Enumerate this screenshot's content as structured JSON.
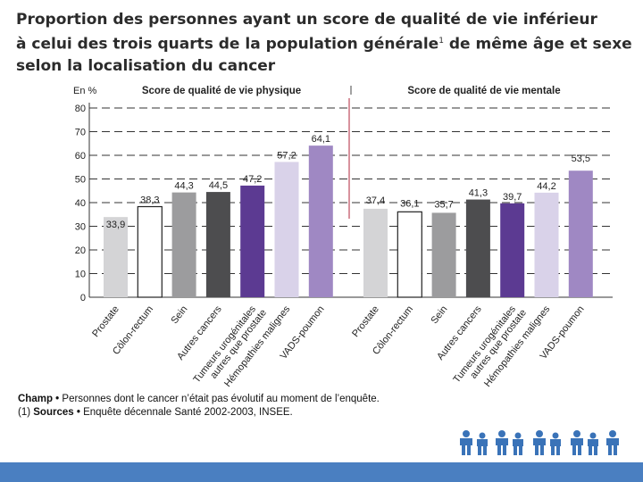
{
  "title": {
    "line1": "Proportion des personnes ayant un score de qualité de vie inférieur",
    "line2a": "à celui des trois quarts de la population générale",
    "line2sup": "1",
    "line2b": "de même âge et sexe",
    "line3": "selon la localisation du cancer"
  },
  "chart_data": {
    "type": "bar",
    "ylabel": "En %",
    "ylim": [
      0,
      80
    ],
    "yticks": [
      0,
      10,
      20,
      30,
      40,
      50,
      60,
      70,
      80
    ],
    "grid": true,
    "categories": [
      "Prostate",
      "Côlon-rectum",
      "Sein",
      "Autres cancers",
      "Tumeurs urogénitales autres que prostate",
      "Hémopathies malignes",
      "VADS-poumon"
    ],
    "category_label_lines": [
      [
        "Prostate"
      ],
      [
        "Côlon-rectum"
      ],
      [
        "Sein"
      ],
      [
        "Autres cancers"
      ],
      [
        "Tumeurs urogénitales",
        "autres que prostate"
      ],
      [
        "Hémopathies malignes"
      ],
      [
        "VADS-poumon"
      ]
    ],
    "colors": [
      "#d4d4d6",
      "#ffffff",
      "#9c9c9e",
      "#4d4d4f",
      "#5c3a92",
      "#d9d2e9",
      "#9f88c3"
    ],
    "series": [
      {
        "name": "Score de qualité de vie physique",
        "values": [
          33.9,
          38.3,
          44.3,
          44.5,
          47.2,
          57.2,
          64.1
        ],
        "labels": [
          "33,9",
          "38,3",
          "44,3",
          "44,5",
          "47,2",
          "57,2",
          "64,1"
        ]
      },
      {
        "name": "Score de qualité de vie mentale",
        "values": [
          37.4,
          36.1,
          35.7,
          41.3,
          39.7,
          44.2,
          53.5
        ],
        "labels": [
          "37,4",
          "36,1",
          "35,7",
          "41,3",
          "39,7",
          "44,2",
          "53,5"
        ]
      }
    ]
  },
  "footnotes": {
    "champ_label": "Champ •",
    "champ_text": "Personnes dont le cancer n’était pas évolutif au moment de l’enquête.",
    "sources_num": "(1)",
    "sources_label": "Sources •",
    "sources_text": "Enquête décennale Santé 2002-2003, INSEE."
  },
  "logo": {
    "name": "people-figures-logo",
    "colors": [
      "#3a73b8",
      "#e5a53b",
      "#c24f8e",
      "#2e3f8f",
      "#6aa14a"
    ]
  }
}
